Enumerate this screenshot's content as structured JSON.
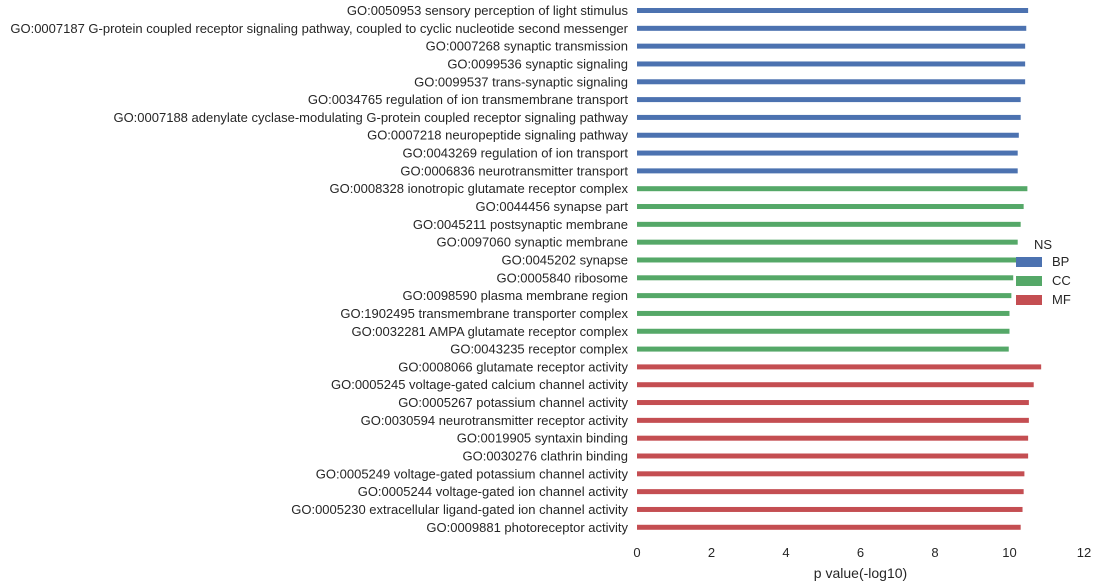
{
  "chart_data": {
    "type": "bar",
    "orientation": "horizontal",
    "xlabel": "p value(-log10)",
    "xlim": [
      0,
      12
    ],
    "xticks": [
      0,
      2,
      4,
      6,
      8,
      10,
      12
    ],
    "grid": false,
    "legend": {
      "title": "NS",
      "placement": "right",
      "entries": [
        {
          "name": "BP",
          "color": "#4c72b0"
        },
        {
          "name": "CC",
          "color": "#55a868"
        },
        {
          "name": "MF",
          "color": "#c44e52"
        }
      ]
    },
    "categories": [
      {
        "label": "GO:0050953 sensory perception of light stimulus",
        "value": 10.5,
        "ns": "BP"
      },
      {
        "label": "GO:0007187 G-protein coupled receptor signaling pathway, coupled to cyclic nucleotide second messenger",
        "value": 10.45,
        "ns": "BP"
      },
      {
        "label": "GO:0007268 synaptic transmission",
        "value": 10.42,
        "ns": "BP"
      },
      {
        "label": "GO:0099536 synaptic signaling",
        "value": 10.42,
        "ns": "BP"
      },
      {
        "label": "GO:0099537 trans-synaptic signaling",
        "value": 10.42,
        "ns": "BP"
      },
      {
        "label": "GO:0034765 regulation of ion transmembrane transport",
        "value": 10.3,
        "ns": "BP"
      },
      {
        "label": "GO:0007188 adenylate cyclase-modulating G-protein coupled receptor signaling pathway",
        "value": 10.3,
        "ns": "BP"
      },
      {
        "label": "GO:0007218 neuropeptide signaling pathway",
        "value": 10.25,
        "ns": "BP"
      },
      {
        "label": "GO:0043269 regulation of ion transport",
        "value": 10.22,
        "ns": "BP"
      },
      {
        "label": "GO:0006836 neurotransmitter transport",
        "value": 10.22,
        "ns": "BP"
      },
      {
        "label": "GO:0008328 ionotropic glutamate receptor complex",
        "value": 10.48,
        "ns": "CC"
      },
      {
        "label": "GO:0044456 synapse part",
        "value": 10.38,
        "ns": "CC"
      },
      {
        "label": "GO:0045211 postsynaptic membrane",
        "value": 10.3,
        "ns": "CC"
      },
      {
        "label": "GO:0097060 synaptic membrane",
        "value": 10.22,
        "ns": "CC"
      },
      {
        "label": "GO:0045202 synapse",
        "value": 10.2,
        "ns": "CC"
      },
      {
        "label": "GO:0005840 ribosome",
        "value": 10.1,
        "ns": "CC"
      },
      {
        "label": "GO:0098590 plasma membrane region",
        "value": 10.05,
        "ns": "CC"
      },
      {
        "label": "GO:1902495 transmembrane transporter complex",
        "value": 10.0,
        "ns": "CC"
      },
      {
        "label": "GO:0032281 AMPA glutamate receptor complex",
        "value": 10.0,
        "ns": "CC"
      },
      {
        "label": "GO:0043235 receptor complex",
        "value": 9.98,
        "ns": "CC"
      },
      {
        "label": "GO:0008066 glutamate receptor activity",
        "value": 10.85,
        "ns": "MF"
      },
      {
        "label": "GO:0005245 voltage-gated calcium channel activity",
        "value": 10.65,
        "ns": "MF"
      },
      {
        "label": "GO:0005267 potassium channel activity",
        "value": 10.52,
        "ns": "MF"
      },
      {
        "label": "GO:0030594 neurotransmitter receptor activity",
        "value": 10.52,
        "ns": "MF"
      },
      {
        "label": "GO:0019905 syntaxin binding",
        "value": 10.5,
        "ns": "MF"
      },
      {
        "label": "GO:0030276 clathrin binding",
        "value": 10.5,
        "ns": "MF"
      },
      {
        "label": "GO:0005249 voltage-gated potassium channel activity",
        "value": 10.4,
        "ns": "MF"
      },
      {
        "label": "GO:0005244 voltage-gated ion channel activity",
        "value": 10.38,
        "ns": "MF"
      },
      {
        "label": "GO:0005230 extracellular ligand-gated ion channel activity",
        "value": 10.35,
        "ns": "MF"
      },
      {
        "label": "GO:0009881 photoreceptor activity",
        "value": 10.3,
        "ns": "MF"
      }
    ]
  }
}
